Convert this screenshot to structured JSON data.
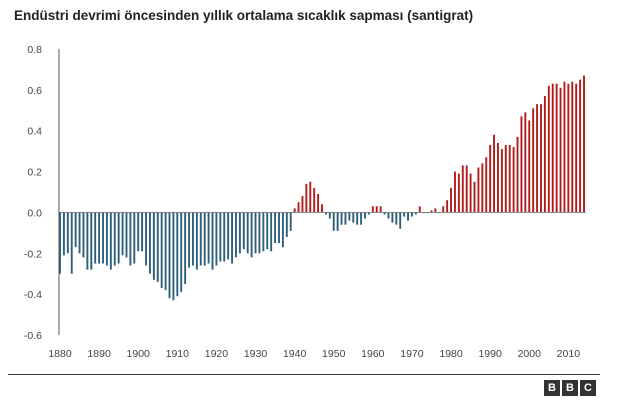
{
  "title": "Endüstri devrimi öncesinden yıllık ortalama sıcaklık sapması (santigrat)",
  "logo_letters": [
    "B",
    "B",
    "C"
  ],
  "colors": {
    "negative": "#2e5f7a",
    "positive": "#b01c1c",
    "axis": "#555555",
    "rule": "#333333"
  },
  "chart_data": {
    "type": "bar",
    "title": "Endüstri devrimi öncesinden yıllık ortalama sıcaklık sapması (santigrat)",
    "xlabel": "",
    "ylabel": "",
    "xlim": [
      1880,
      2014
    ],
    "ylim": [
      -0.6,
      0.8
    ],
    "y_ticks": [
      0.8,
      0.6,
      0.4,
      0.2,
      0.0,
      -0.2,
      -0.4,
      -0.6
    ],
    "y_tick_labels": [
      "0.8",
      "0.6",
      "0.4",
      "0.2",
      "0.0",
      "-0.2",
      "-0.4",
      "-0.6"
    ],
    "x_ticks": [
      1880,
      1890,
      1900,
      1910,
      1920,
      1930,
      1940,
      1950,
      1960,
      1970,
      1980,
      1990,
      2000,
      2010
    ],
    "x_tick_labels": [
      "1880",
      "1890",
      "1900",
      "1910",
      "1920",
      "1930",
      "1940",
      "1950",
      "1960",
      "1970",
      "1980",
      "1990",
      "2000",
      "2010"
    ],
    "grid": false,
    "x": [
      1880,
      1881,
      1882,
      1883,
      1884,
      1885,
      1886,
      1887,
      1888,
      1889,
      1890,
      1891,
      1892,
      1893,
      1894,
      1895,
      1896,
      1897,
      1898,
      1899,
      1900,
      1901,
      1902,
      1903,
      1904,
      1905,
      1906,
      1907,
      1908,
      1909,
      1910,
      1911,
      1912,
      1913,
      1914,
      1915,
      1916,
      1917,
      1918,
      1919,
      1920,
      1921,
      1922,
      1923,
      1924,
      1925,
      1926,
      1927,
      1928,
      1929,
      1930,
      1931,
      1932,
      1933,
      1934,
      1935,
      1936,
      1937,
      1938,
      1939,
      1940,
      1941,
      1942,
      1943,
      1944,
      1945,
      1946,
      1947,
      1948,
      1949,
      1950,
      1951,
      1952,
      1953,
      1954,
      1955,
      1956,
      1957,
      1958,
      1959,
      1960,
      1961,
      1962,
      1963,
      1964,
      1965,
      1966,
      1967,
      1968,
      1969,
      1970,
      1971,
      1972,
      1973,
      1974,
      1975,
      1976,
      1977,
      1978,
      1979,
      1980,
      1981,
      1982,
      1983,
      1984,
      1985,
      1986,
      1987,
      1988,
      1989,
      1990,
      1991,
      1992,
      1993,
      1994,
      1995,
      1996,
      1997,
      1998,
      1999,
      2000,
      2001,
      2002,
      2003,
      2004,
      2005,
      2006,
      2007,
      2008,
      2009,
      2010,
      2011,
      2012,
      2013,
      2014
    ],
    "values": [
      -0.3,
      -0.21,
      -0.2,
      -0.3,
      -0.17,
      -0.2,
      -0.22,
      -0.28,
      -0.28,
      -0.25,
      -0.25,
      -0.25,
      -0.26,
      -0.28,
      -0.26,
      -0.25,
      -0.21,
      -0.22,
      -0.26,
      -0.25,
      -0.19,
      -0.19,
      -0.26,
      -0.3,
      -0.33,
      -0.34,
      -0.37,
      -0.38,
      -0.42,
      -0.43,
      -0.41,
      -0.39,
      -0.35,
      -0.27,
      -0.26,
      -0.28,
      -0.26,
      -0.26,
      -0.25,
      -0.28,
      -0.26,
      -0.24,
      -0.24,
      -0.23,
      -0.25,
      -0.22,
      -0.2,
      -0.18,
      -0.2,
      -0.22,
      -0.2,
      -0.2,
      -0.19,
      -0.18,
      -0.19,
      -0.15,
      -0.15,
      -0.17,
      -0.12,
      -0.09,
      0.02,
      0.05,
      0.08,
      0.14,
      0.15,
      0.12,
      0.09,
      0.04,
      -0.01,
      -0.03,
      -0.09,
      -0.09,
      -0.06,
      -0.06,
      -0.04,
      -0.05,
      -0.06,
      -0.06,
      -0.03,
      -0.01,
      0.03,
      0.03,
      0.03,
      -0.01,
      -0.03,
      -0.05,
      -0.06,
      -0.08,
      -0.02,
      -0.04,
      -0.02,
      -0.01,
      0.03,
      0.0,
      0.0,
      0.01,
      0.02,
      0.0,
      0.03,
      0.06,
      0.12,
      0.2,
      0.19,
      0.23,
      0.23,
      0.19,
      0.15,
      0.22,
      0.24,
      0.27,
      0.33,
      0.38,
      0.34,
      0.31,
      0.33,
      0.33,
      0.32,
      0.37,
      0.47,
      0.49,
      0.45,
      0.51,
      0.53,
      0.53,
      0.57,
      0.62,
      0.63,
      0.63,
      0.61,
      0.64,
      0.63,
      0.64,
      0.63,
      0.65,
      0.67
    ]
  }
}
